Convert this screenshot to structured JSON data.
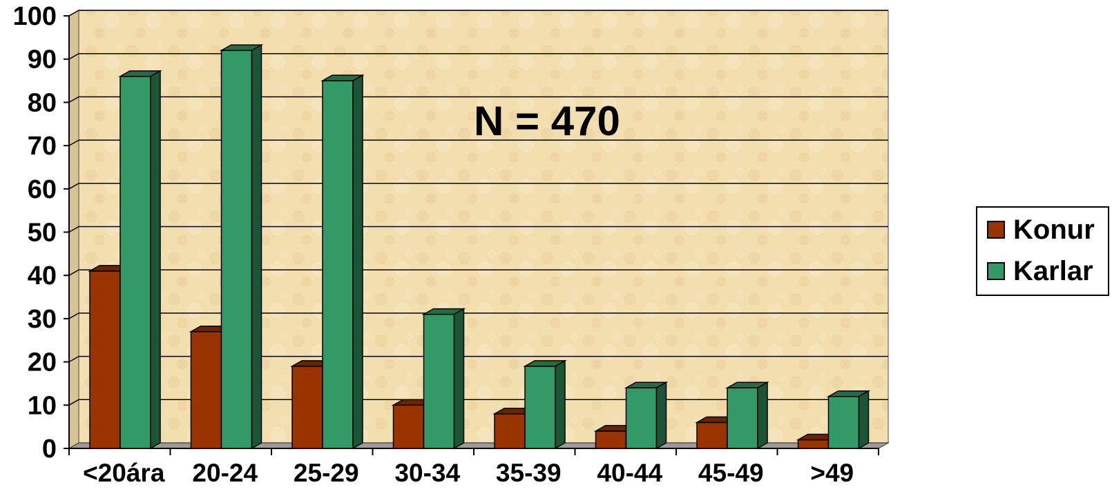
{
  "chart_data": {
    "type": "bar",
    "title": "",
    "annotation": "N = 470",
    "categories": [
      "<20ára",
      "20-24",
      "25-29",
      "30-34",
      "35-39",
      "40-44",
      "45-49",
      ">49"
    ],
    "series": [
      {
        "name": "Konur",
        "color": "#993300",
        "values": [
          41,
          27,
          19,
          10,
          8,
          4,
          6,
          2
        ]
      },
      {
        "name": "Karlar",
        "color": "#339966",
        "values": [
          86,
          92,
          85,
          31,
          19,
          14,
          14,
          12
        ]
      }
    ],
    "yticks": [
      "0",
      "10",
      "20",
      "30",
      "40",
      "50",
      "60",
      "70",
      "80",
      "90",
      "100"
    ],
    "ylim": [
      0,
      100
    ],
    "grid": true,
    "legend_position": "right",
    "xlabel": "",
    "ylabel": ""
  }
}
